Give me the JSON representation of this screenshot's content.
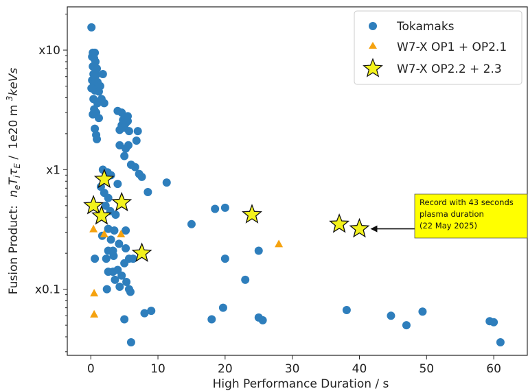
{
  "chart_data": {
    "type": "scatter",
    "xlabel": "High Performance Duration / s",
    "ylabel_prefix": "Fusion Product:",
    "ylabel_units": "1e20 m",
    "ylabel_units_sup": "3",
    "ylabel_units_tail": "keVs",
    "x_ticks": [
      "0",
      "10",
      "20",
      "30",
      "40",
      "50",
      "60"
    ],
    "x_tick_values": [
      0,
      10,
      20,
      30,
      40,
      50,
      60
    ],
    "y_ticks": [
      "x0.1",
      "x1",
      "x10"
    ],
    "y_tick_values": [
      0.1,
      1,
      10
    ],
    "y_scale": "log",
    "xlim": [
      -3.5,
      65
    ],
    "ylim": [
      0.028,
      23
    ],
    "grid": false,
    "legend_position": "top-right",
    "series": [
      {
        "name": "Tokamaks",
        "marker": "circle",
        "color": "#2e7ebc",
        "points": [
          [
            0.1,
            15.5
          ],
          [
            0.3,
            9.5
          ],
          [
            0.6,
            9.5
          ],
          [
            0.2,
            8.8
          ],
          [
            0.5,
            8.5
          ],
          [
            0.7,
            8.0
          ],
          [
            0.3,
            7.3
          ],
          [
            0.6,
            7.2
          ],
          [
            0.9,
            7.0
          ],
          [
            0.4,
            6.3
          ],
          [
            0.8,
            6.2
          ],
          [
            1.8,
            6.3
          ],
          [
            0.2,
            5.6
          ],
          [
            0.5,
            5.2
          ],
          [
            1.0,
            5.4
          ],
          [
            1.4,
            5.0
          ],
          [
            0.1,
            4.8
          ],
          [
            0.6,
            4.6
          ],
          [
            1.2,
            4.5
          ],
          [
            0.4,
            3.9
          ],
          [
            1.0,
            3.6
          ],
          [
            1.6,
            3.9
          ],
          [
            2.0,
            3.6
          ],
          [
            0.5,
            3.2
          ],
          [
            0.8,
            3.0
          ],
          [
            4.0,
            3.1
          ],
          [
            4.6,
            3.0
          ],
          [
            5.5,
            2.8
          ],
          [
            0.3,
            2.9
          ],
          [
            1.2,
            2.7
          ],
          [
            4.8,
            2.6
          ],
          [
            5.5,
            2.55
          ],
          [
            5.2,
            2.45
          ],
          [
            4.6,
            2.35
          ],
          [
            5.0,
            2.25
          ],
          [
            4.3,
            2.15
          ],
          [
            5.7,
            2.1
          ],
          [
            7.0,
            2.1
          ],
          [
            0.6,
            2.2
          ],
          [
            0.8,
            1.95
          ],
          [
            0.9,
            1.8
          ],
          [
            6.8,
            1.75
          ],
          [
            4.3,
            1.6
          ],
          [
            5.6,
            1.6
          ],
          [
            5.2,
            1.5
          ],
          [
            5.0,
            1.3
          ],
          [
            6.0,
            1.1
          ],
          [
            6.6,
            1.05
          ],
          [
            7.2,
            0.92
          ],
          [
            7.6,
            0.87
          ],
          [
            1.8,
            1.0
          ],
          [
            2.5,
            0.95
          ],
          [
            3.0,
            0.9
          ],
          [
            11.3,
            0.78
          ],
          [
            4.0,
            0.76
          ],
          [
            1.5,
            0.72
          ],
          [
            2.0,
            0.64
          ],
          [
            8.5,
            0.65
          ],
          [
            2.6,
            0.58
          ],
          [
            2.2,
            0.5
          ],
          [
            2.9,
            0.45
          ],
          [
            3.7,
            0.42
          ],
          [
            18.5,
            0.47
          ],
          [
            20.0,
            0.48
          ],
          [
            15.0,
            0.35
          ],
          [
            2.6,
            0.32
          ],
          [
            3.5,
            0.31
          ],
          [
            5.2,
            0.31
          ],
          [
            1.7,
            0.28
          ],
          [
            3.0,
            0.26
          ],
          [
            4.2,
            0.24
          ],
          [
            2.6,
            0.21
          ],
          [
            3.3,
            0.21
          ],
          [
            5.2,
            0.22
          ],
          [
            2.3,
            0.18
          ],
          [
            3.4,
            0.19
          ],
          [
            5.7,
            0.18
          ],
          [
            0.6,
            0.18
          ],
          [
            6.3,
            0.18
          ],
          [
            20.0,
            0.18
          ],
          [
            25.0,
            0.21
          ],
          [
            5.0,
            0.165
          ],
          [
            2.6,
            0.14
          ],
          [
            3.3,
            0.14
          ],
          [
            4.0,
            0.145
          ],
          [
            4.6,
            0.13
          ],
          [
            3.6,
            0.12
          ],
          [
            5.3,
            0.115
          ],
          [
            2.4,
            0.1
          ],
          [
            4.3,
            0.105
          ],
          [
            5.7,
            0.1
          ],
          [
            5.9,
            0.095
          ],
          [
            23.0,
            0.12
          ],
          [
            19.7,
            0.07
          ],
          [
            18.0,
            0.056
          ],
          [
            25.0,
            0.058
          ],
          [
            25.6,
            0.055
          ],
          [
            9.0,
            0.066
          ],
          [
            8.0,
            0.063
          ],
          [
            5.0,
            0.056
          ],
          [
            38.1,
            0.067
          ],
          [
            44.7,
            0.06
          ],
          [
            47.0,
            0.05
          ],
          [
            49.4,
            0.065
          ],
          [
            59.4,
            0.054
          ],
          [
            60.0,
            0.053
          ],
          [
            6.0,
            0.036
          ],
          [
            61.0,
            0.036
          ]
        ]
      },
      {
        "name": "W7-X OP1 + OP2.1",
        "marker": "triangle",
        "color": "#f5a20f",
        "points": [
          [
            0.4,
            0.32
          ],
          [
            2.0,
            0.29
          ],
          [
            4.5,
            0.29
          ],
          [
            28.0,
            0.24
          ],
          [
            0.5,
            0.093
          ],
          [
            0.5,
            0.062
          ]
        ]
      },
      {
        "name": "W7-X OP2.2 + 2.3",
        "marker": "star",
        "color": "#f3f21c",
        "points": [
          [
            2.0,
            0.83
          ],
          [
            0.4,
            0.5
          ],
          [
            4.6,
            0.53
          ],
          [
            1.6,
            0.41
          ],
          [
            24.0,
            0.42
          ],
          [
            7.6,
            0.2
          ],
          [
            37.0,
            0.35
          ],
          [
            40.0,
            0.32
          ]
        ]
      }
    ],
    "annotation": {
      "lines": [
        "Record with 43 seconds",
        "plasma duration",
        "(22 May 2025)"
      ],
      "box_color": "#ffff00",
      "arrow_target": [
        40.0,
        0.32
      ]
    }
  }
}
